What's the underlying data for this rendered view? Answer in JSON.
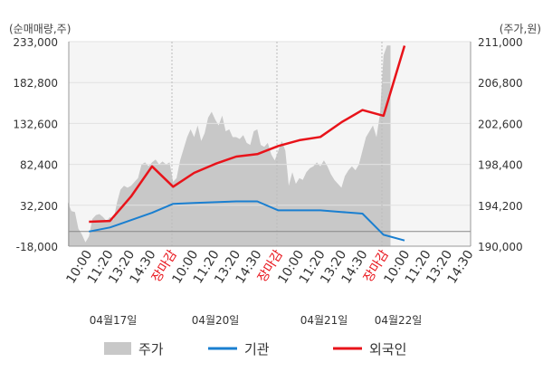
{
  "chart_data": {
    "type": "line",
    "left_axis_label": "(순매매량,주)",
    "right_axis_label": "(주가,원)",
    "left_ticks": [
      "233,000",
      "182,800",
      "132,600",
      "82,400",
      "32,200",
      "-18,000"
    ],
    "right_ticks": [
      "211,000",
      "206,800",
      "202,600",
      "198,400",
      "194,200",
      "190,000"
    ],
    "left_range": [
      -18000,
      233000
    ],
    "right_range": [
      190000,
      211000
    ],
    "x_ticks": [
      "10:00",
      "11:20",
      "13:20",
      "14:30",
      "장마감",
      "10:00",
      "11:20",
      "13:20",
      "14:30",
      "장마감",
      "10:00",
      "11:20",
      "13:20",
      "14:30",
      "장마감",
      "10:00",
      "11:20",
      "13:20",
      "14:30"
    ],
    "dates": [
      "04월17일",
      "04월20일",
      "04월21일",
      "04월22일"
    ],
    "grid": true,
    "legend_position": "bottom",
    "series": [
      {
        "name": "주가",
        "type": "area",
        "axis": "right",
        "color": "#c8c8c8",
        "values": [
          [
            0,
            194.5
          ],
          [
            1,
            193.6
          ],
          [
            2,
            193.5
          ],
          [
            3,
            191.8
          ],
          [
            4,
            191.2
          ],
          [
            5,
            190.4
          ],
          [
            6,
            191.0
          ],
          [
            7,
            192.8
          ],
          [
            8,
            193.2
          ],
          [
            9,
            193.3
          ],
          [
            10,
            193.0
          ],
          [
            11,
            192.6
          ],
          [
            12,
            193.0
          ],
          [
            13,
            192.7
          ],
          [
            14,
            194.5
          ],
          [
            15,
            195.8
          ],
          [
            16,
            196.2
          ],
          [
            17,
            196.0
          ],
          [
            18,
            196.2
          ],
          [
            19,
            196.6
          ],
          [
            20,
            197.0
          ],
          [
            21,
            198.4
          ],
          [
            22,
            198.6
          ],
          [
            23,
            198.2
          ],
          [
            24,
            198.6
          ],
          [
            25,
            198.9
          ],
          [
            26,
            198.4
          ],
          [
            27,
            198.7
          ],
          [
            28,
            198.4
          ],
          [
            29,
            198.6
          ],
          [
            30,
            196.6
          ],
          [
            31,
            197.0
          ],
          [
            32,
            198.8
          ],
          [
            33,
            200.0
          ],
          [
            34,
            201.2
          ],
          [
            35,
            202.0
          ],
          [
            36,
            201.2
          ],
          [
            37,
            202.4
          ],
          [
            38,
            200.8
          ],
          [
            39,
            201.6
          ],
          [
            40,
            203.2
          ],
          [
            41,
            203.8
          ],
          [
            42,
            203.0
          ],
          [
            43,
            202.4
          ],
          [
            44,
            203.4
          ],
          [
            45,
            201.8
          ],
          [
            46,
            202.0
          ],
          [
            47,
            201.2
          ],
          [
            48,
            201.2
          ],
          [
            49,
            201.0
          ],
          [
            50,
            201.4
          ],
          [
            51,
            200.6
          ],
          [
            52,
            200.4
          ],
          [
            53,
            201.8
          ],
          [
            54,
            202.0
          ],
          [
            55,
            200.4
          ],
          [
            56,
            200.2
          ],
          [
            57,
            200.6
          ],
          [
            58,
            199.4
          ],
          [
            59,
            198.8
          ],
          [
            60,
            199.8
          ],
          [
            61,
            200.8
          ],
          [
            62,
            199.8
          ],
          [
            63,
            196.2
          ],
          [
            64,
            197.6
          ],
          [
            65,
            196.4
          ],
          [
            66,
            197.0
          ],
          [
            67,
            196.8
          ],
          [
            68,
            197.6
          ],
          [
            69,
            198.0
          ],
          [
            70,
            198.2
          ],
          [
            71,
            198.6
          ],
          [
            72,
            198.2
          ],
          [
            73,
            198.8
          ],
          [
            74,
            198.2
          ],
          [
            75,
            197.4
          ],
          [
            76,
            196.8
          ],
          [
            77,
            196.4
          ],
          [
            78,
            196.0
          ],
          [
            79,
            197.2
          ],
          [
            80,
            197.8
          ],
          [
            81,
            198.2
          ],
          [
            82,
            197.8
          ],
          [
            83,
            198.4
          ],
          [
            84,
            199.8
          ],
          [
            85,
            201.2
          ],
          [
            86,
            201.8
          ],
          [
            87,
            202.4
          ],
          [
            88,
            201.2
          ],
          [
            89,
            203.6
          ],
          [
            90,
            209.6
          ],
          [
            91,
            210.6
          ],
          [
            92,
            210.6
          ]
        ]
      },
      {
        "name": "기관",
        "type": "line",
        "axis": "left",
        "color": "#1a7fd0",
        "values": [
          [
            6,
            0
          ],
          [
            12,
            5000
          ],
          [
            18,
            14000
          ],
          [
            24,
            23000
          ],
          [
            30,
            34000
          ],
          [
            36,
            35000
          ],
          [
            42,
            36000
          ],
          [
            48,
            37000
          ],
          [
            54,
            37000
          ],
          [
            60,
            26000
          ],
          [
            66,
            26000
          ],
          [
            72,
            26000
          ],
          [
            78,
            24000
          ],
          [
            84,
            22000
          ],
          [
            90,
            -4000
          ],
          [
            96,
            -11000
          ]
        ]
      },
      {
        "name": "외국인",
        "type": "line",
        "axis": "left",
        "color": "#e8131a",
        "values": [
          [
            6,
            12000
          ],
          [
            12,
            13000
          ],
          [
            18,
            43000
          ],
          [
            24,
            80000
          ],
          [
            30,
            55000
          ],
          [
            36,
            72000
          ],
          [
            42,
            83000
          ],
          [
            48,
            92000
          ],
          [
            54,
            95000
          ],
          [
            60,
            105000
          ],
          [
            66,
            112000
          ],
          [
            72,
            116000
          ],
          [
            78,
            134000
          ],
          [
            84,
            149000
          ],
          [
            90,
            142000
          ],
          [
            96,
            228000
          ]
        ]
      }
    ]
  },
  "legend": [
    {
      "label": "주가",
      "color": "#c8c8c8"
    },
    {
      "label": "기관",
      "color": "#1a7fd0"
    },
    {
      "label": "외국인",
      "color": "#e8131a"
    }
  ]
}
